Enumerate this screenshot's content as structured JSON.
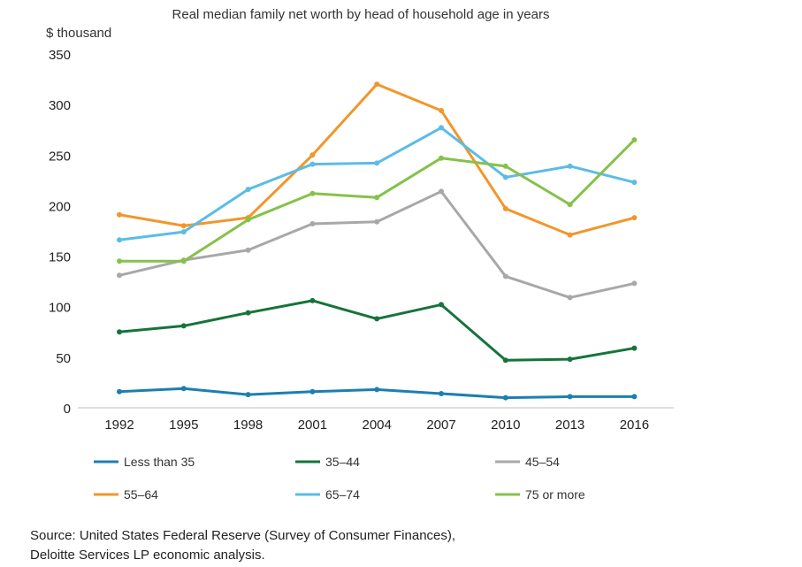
{
  "chart_data": {
    "type": "line",
    "title": "Real median family net worth by head of household age in years",
    "ylabel": "$ thousand",
    "xlabel": "",
    "ylim": [
      0,
      350
    ],
    "yticks": [
      0,
      50,
      100,
      150,
      200,
      250,
      300,
      350
    ],
    "categories": [
      "1992",
      "1995",
      "1998",
      "2001",
      "2004",
      "2007",
      "2010",
      "2013",
      "2016"
    ],
    "grid": false,
    "legend_position": "bottom",
    "series": [
      {
        "name": "Less than 35",
        "color": "#1c7fb0",
        "values": [
          16,
          19,
          13,
          16,
          18,
          14,
          10,
          11,
          11
        ]
      },
      {
        "name": "35–44",
        "color": "#16733c",
        "values": [
          75,
          81,
          94,
          106,
          88,
          102,
          47,
          48,
          59
        ]
      },
      {
        "name": "45–54",
        "color": "#a8a8a8",
        "values": [
          131,
          146,
          156,
          182,
          184,
          214,
          130,
          109,
          123
        ]
      },
      {
        "name": "55–64",
        "color": "#f2962b",
        "values": [
          191,
          180,
          188,
          250,
          320,
          294,
          197,
          171,
          188
        ]
      },
      {
        "name": "65–74",
        "color": "#5bbce6",
        "values": [
          166,
          174,
          216,
          241,
          242,
          277,
          228,
          239,
          223
        ]
      },
      {
        "name": "75 or more",
        "color": "#86c14a",
        "values": [
          145,
          145,
          186,
          212,
          208,
          247,
          239,
          201,
          265
        ]
      }
    ]
  },
  "source": {
    "line1": "Source: United States Federal Reserve (Survey of Consumer Finances),",
    "line2": "Deloitte Services LP economic analysis."
  }
}
